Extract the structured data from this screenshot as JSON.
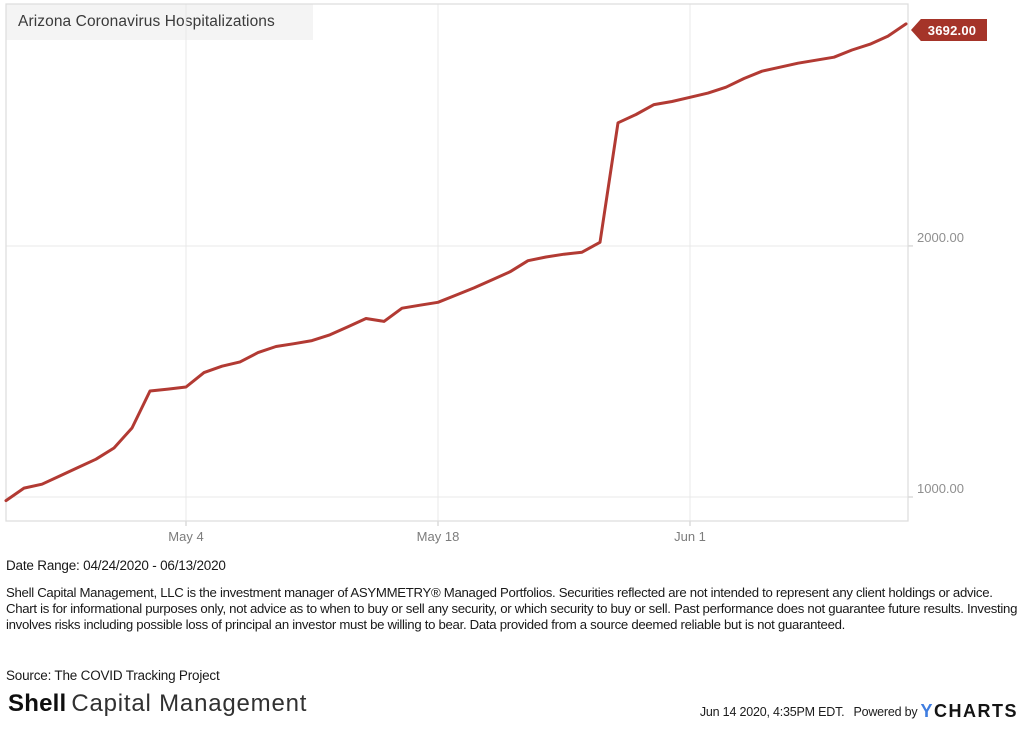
{
  "header": {
    "title": "Arizona Coronavirus Hospitalizations"
  },
  "chart_data": {
    "type": "line",
    "title": "Arizona Coronavirus Hospitalizations",
    "scale": "log",
    "line_color": "#b23a33",
    "grid": true,
    "legend_position": "none",
    "x_range": [
      "04/24/2020",
      "06/13/2020"
    ],
    "x": [
      "04/24/2020",
      "04/25/2020",
      "04/26/2020",
      "04/27/2020",
      "04/28/2020",
      "04/29/2020",
      "04/30/2020",
      "05/01/2020",
      "05/02/2020",
      "05/03/2020",
      "05/04/2020",
      "05/05/2020",
      "05/06/2020",
      "05/07/2020",
      "05/08/2020",
      "05/09/2020",
      "05/10/2020",
      "05/11/2020",
      "05/12/2020",
      "05/13/2020",
      "05/14/2020",
      "05/15/2020",
      "05/16/2020",
      "05/17/2020",
      "05/18/2020",
      "05/19/2020",
      "05/20/2020",
      "05/21/2020",
      "05/22/2020",
      "05/23/2020",
      "05/24/2020",
      "05/25/2020",
      "05/26/2020",
      "05/27/2020",
      "05/28/2020",
      "05/29/2020",
      "05/30/2020",
      "05/31/2020",
      "06/01/2020",
      "06/02/2020",
      "06/03/2020",
      "06/04/2020",
      "06/05/2020",
      "06/06/2020",
      "06/07/2020",
      "06/08/2020",
      "06/09/2020",
      "06/10/2020",
      "06/11/2020",
      "06/12/2020",
      "06/13/2020"
    ],
    "values": [
      990,
      1025,
      1036,
      1060,
      1085,
      1110,
      1145,
      1210,
      1340,
      1347,
      1355,
      1410,
      1435,
      1452,
      1490,
      1515,
      1527,
      1540,
      1565,
      1600,
      1637,
      1624,
      1684,
      1698,
      1712,
      1746,
      1781,
      1821,
      1862,
      1920,
      1940,
      1955,
      1966,
      2020,
      2810,
      2875,
      2955,
      2980,
      3015,
      3050,
      3100,
      3175,
      3240,
      3276,
      3312,
      3340,
      3368,
      3435,
      3491,
      3570,
      3692
    ],
    "last_value_label": "3692.00",
    "y_ticks": [
      {
        "value": 1000,
        "label": "1000.00"
      },
      {
        "value": 2000,
        "label": "2000.00"
      }
    ],
    "x_ticks": [
      {
        "day_index": 10,
        "label": "May 4"
      },
      {
        "day_index": 24,
        "label": "May 18"
      },
      {
        "day_index": 38,
        "label": "Jun 1"
      }
    ]
  },
  "footer": {
    "date_range": "Date Range: 04/24/2020 - 06/13/2020",
    "disclaimer": "Shell Capital Management, LLC is the investment manager of ASYMMETRY® Managed Portfolios. Securities reflected are not intended to represent any client holdings or advice. Chart is for informational purposes only, not advice as to when to buy or sell any security, or which security to buy or sell. Past performance does not guarantee future results. Investing involves risks including possible loss of principal an investor must be willing to bear. Data provided from a source deemed reliable but is not guaranteed.",
    "source": "Source: The COVID Tracking Project",
    "logo_bold": "Shell",
    "logo_rest": "Capital Management",
    "timestamp": "Jun 14 2020, 4:35PM EDT.",
    "powered_by": "Powered by",
    "ycharts_y": "Y",
    "ycharts_rest": "CHARTS"
  }
}
